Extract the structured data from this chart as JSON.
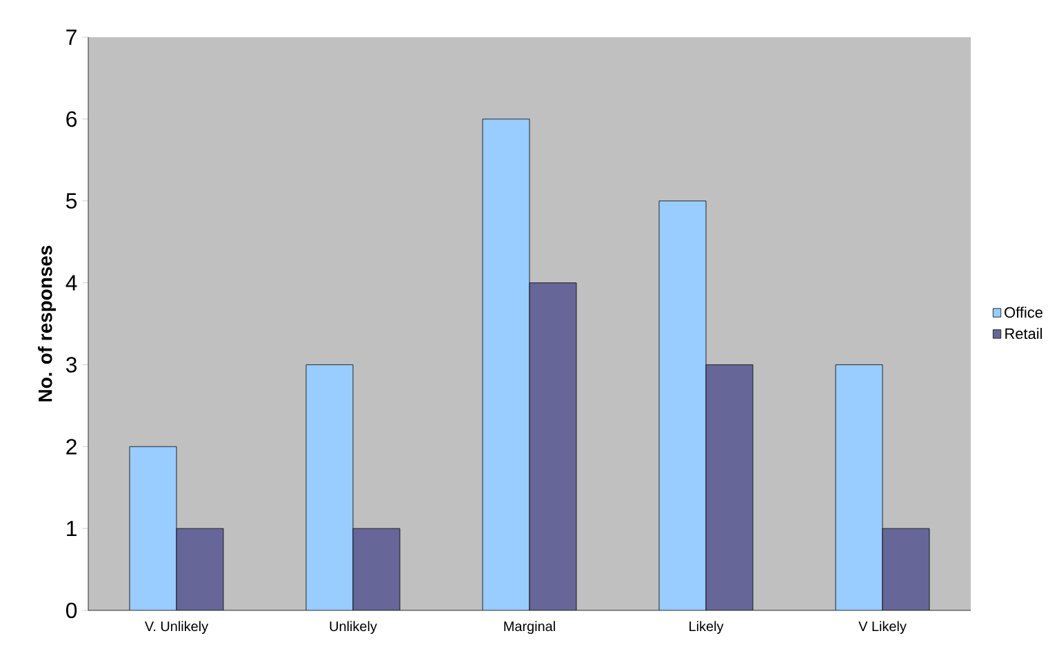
{
  "chart_data": {
    "type": "bar",
    "ylabel": "No. of responses",
    "categories": [
      "V. Unlikely",
      "Unlikely",
      "Marginal",
      "Likely",
      "V Likely"
    ],
    "series": [
      {
        "name": "Office",
        "color": "#99ccff",
        "values": [
          2,
          3,
          6,
          5,
          3
        ]
      },
      {
        "name": "Retail",
        "color": "#666699",
        "values": [
          1,
          1,
          4,
          3,
          1
        ]
      }
    ],
    "ylim": [
      0,
      7
    ],
    "yticks": [
      0,
      1,
      2,
      3,
      4,
      5,
      6,
      7
    ],
    "grid": false,
    "legend": "right"
  }
}
